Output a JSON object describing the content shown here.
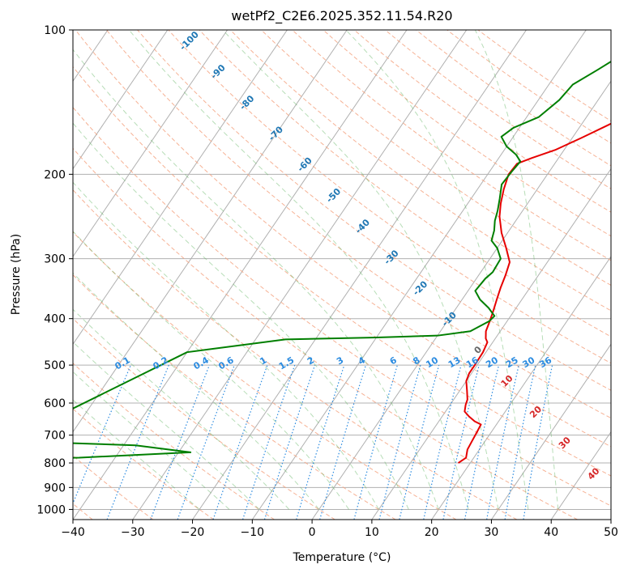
{
  "chart_data": {
    "type": "line",
    "title": "wetPf2_C2E6.2025.352.11.54.R20",
    "xlabel": "Temperature (°C)",
    "ylabel": "Pressure (hPa)",
    "xlim": [
      -40,
      50
    ],
    "ylim": [
      1050,
      100
    ],
    "y_scale": "log",
    "grid": true,
    "x_ticks": [
      -40,
      -30,
      -20,
      -10,
      0,
      10,
      20,
      30,
      40,
      50
    ],
    "y_ticks": [
      100,
      200,
      300,
      400,
      500,
      600,
      700,
      800,
      900,
      1000
    ],
    "dry_adiabat_labels": [
      "-100",
      "-90",
      "-80",
      "-70",
      "-60",
      "-50",
      "-40",
      "-30",
      "-20",
      "-10",
      "0",
      "10",
      "20",
      "30",
      "40"
    ],
    "dry_adiabat_values": [
      -100,
      -90,
      -80,
      -70,
      -60,
      -50,
      -40,
      -30,
      -20,
      -10,
      0,
      10,
      20,
      30,
      40
    ],
    "mixing_ratio_labels": [
      "0.1",
      "0.2",
      "0.4",
      "0.6",
      "1",
      "1.5",
      "2",
      "3",
      "4",
      "6",
      "8",
      "10",
      "13",
      "16",
      "20",
      "25",
      "30",
      "36"
    ],
    "mixing_ratio_values": [
      0.1,
      0.2,
      0.4,
      0.6,
      1,
      1.5,
      2,
      3,
      4,
      6,
      8,
      10,
      13,
      16,
      20,
      25,
      30,
      36
    ],
    "series": [
      {
        "color": "#e60000",
        "points": [
          [
            18.0,
            800
          ],
          [
            18.7,
            780
          ],
          [
            18.0,
            750
          ],
          [
            17.8,
            720
          ],
          [
            17.6,
            690
          ],
          [
            17.4,
            665
          ],
          [
            16.0,
            655
          ],
          [
            14.5,
            640
          ],
          [
            13.2,
            625
          ],
          [
            12.6,
            605
          ],
          [
            12.3,
            590
          ],
          [
            11.2,
            565
          ],
          [
            10.0,
            540
          ],
          [
            9.6,
            520
          ],
          [
            9.6,
            500
          ],
          [
            9.5,
            470
          ],
          [
            9.1,
            448
          ],
          [
            8.4,
            440
          ],
          [
            7.6,
            425
          ],
          [
            7.1,
            405
          ],
          [
            6.5,
            385
          ],
          [
            5.8,
            365
          ],
          [
            5.1,
            345
          ],
          [
            4.5,
            325
          ],
          [
            3.7,
            305
          ],
          [
            1.5,
            285
          ],
          [
            -1.0,
            265
          ],
          [
            -3.2,
            245
          ],
          [
            -4.5,
            230
          ],
          [
            -5.6,
            215
          ],
          [
            -6.5,
            200
          ],
          [
            -6.3,
            190
          ],
          [
            -4.5,
            185
          ],
          [
            -1.5,
            178
          ],
          [
            1.5,
            168
          ],
          [
            4.5,
            158
          ],
          [
            7.5,
            148
          ],
          [
            9.5,
            138
          ],
          [
            11.0,
            125
          ],
          [
            12.0,
            115
          ],
          [
            12.6,
            105
          ],
          [
            13.6,
            100
          ]
        ],
        "name": ""
      },
      {
        "color": "#007f00",
        "points": [
          [
            -58.0,
            785
          ],
          [
            -46.0,
            780
          ],
          [
            -28.0,
            760
          ],
          [
            -38.0,
            735
          ],
          [
            -60.0,
            720
          ],
          [
            -40.0,
            470
          ],
          [
            -25.0,
            442
          ],
          [
            -10.0,
            438
          ],
          [
            0.0,
            434
          ],
          [
            5.0,
            425
          ],
          [
            7.0,
            405
          ],
          [
            7.3,
            395
          ],
          [
            5.4,
            380
          ],
          [
            3.0,
            365
          ],
          [
            1.2,
            350
          ],
          [
            1.5,
            330
          ],
          [
            2.0,
            320
          ],
          [
            1.8,
            300
          ],
          [
            0.0,
            285
          ],
          [
            -1.8,
            275
          ],
          [
            -2.5,
            262
          ],
          [
            -3.5,
            250
          ],
          [
            -4.2,
            238
          ],
          [
            -5.2,
            225
          ],
          [
            -6.5,
            210
          ],
          [
            -6.3,
            198
          ],
          [
            -6.0,
            188
          ],
          [
            -7.5,
            182
          ],
          [
            -10.0,
            175
          ],
          [
            -12.0,
            167
          ],
          [
            -11.0,
            160
          ],
          [
            -8.0,
            152
          ],
          [
            -6.5,
            140
          ],
          [
            -6.0,
            130
          ],
          [
            -3.5,
            121
          ],
          [
            -1.0,
            112
          ],
          [
            0.3,
            100
          ]
        ],
        "name": ""
      }
    ]
  }
}
